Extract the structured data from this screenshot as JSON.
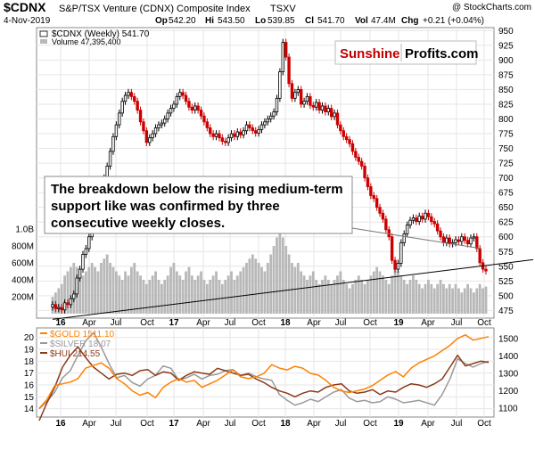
{
  "header": {
    "symbol": "$CDNX",
    "name": "S&P/TSX Venture (CDNX) Composite Index",
    "exchange": "TSXV",
    "copyright": "@ StockCharts.com",
    "date": "4-Nov-2019",
    "open_label": "Op",
    "open": "542.20",
    "high_label": "Hi",
    "high": "543.50",
    "low_label": "Lo",
    "low": "539.85",
    "close_label": "Cl",
    "close": "541.70",
    "vol_label": "Vol",
    "vol": "47.4M",
    "chg_label": "Chg",
    "chg": "+0.21 (+0.04%)"
  },
  "watermark": {
    "part1": "Sunshine",
    "part2": "Profits.com",
    "color1": "#c00000",
    "color2": "#000000"
  },
  "annotation": {
    "line1": "The breakdown below the rising medium-term",
    "line2": "support like was confirmed by three",
    "line3": "consecutive weekly closes."
  },
  "colors": {
    "up": "#000000",
    "down": "#cc0000",
    "volume": "#b8b8b8",
    "gold": "#ff8000",
    "silver": "#999999",
    "hui": "#8b3a1a"
  },
  "chart_data": [
    {
      "type": "candlestick",
      "legend": [
        "$CDNX (Weekly) 541.70",
        "Volume 47,395,400"
      ],
      "x_ticks": [
        "16",
        "Apr",
        "Jul",
        "Oct",
        "17",
        "Apr",
        "Jul",
        "Oct",
        "18",
        "Apr",
        "Jul",
        "Oct",
        "19",
        "Apr",
        "Jul",
        "Oct"
      ],
      "ylim": [
        462,
        955
      ],
      "y_ticks": [
        475,
        500,
        525,
        550,
        575,
        600,
        625,
        650,
        675,
        700,
        725,
        750,
        775,
        800,
        825,
        850,
        875,
        900,
        925,
        950
      ],
      "volume_ticks": [
        "200M",
        "400M",
        "600M",
        "800M",
        "1.0B"
      ],
      "closes": [
        485,
        478,
        480,
        476,
        488,
        485,
        495,
        503,
        530,
        545,
        570,
        580,
        600,
        620,
        640,
        660,
        680,
        700,
        720,
        745,
        770,
        790,
        810,
        830,
        840,
        845,
        838,
        830,
        815,
        795,
        780,
        760,
        768,
        775,
        785,
        790,
        793,
        800,
        810,
        818,
        825,
        838,
        845,
        840,
        830,
        820,
        815,
        822,
        815,
        805,
        795,
        785,
        775,
        770,
        775,
        768,
        762,
        760,
        768,
        775,
        770,
        778,
        773,
        780,
        790,
        785,
        780,
        776,
        782,
        790,
        795,
        800,
        805,
        812,
        835,
        880,
        930,
        905,
        860,
        835,
        845,
        850,
        825,
        830,
        838,
        823,
        820,
        828,
        815,
        822,
        812,
        818,
        804,
        810,
        790,
        780,
        770,
        765,
        758,
        745,
        735,
        728,
        720,
        700,
        685,
        670,
        665,
        650,
        640,
        630,
        612,
        600,
        560,
        545,
        555,
        590,
        605,
        620,
        628,
        632,
        626,
        635,
        630,
        640,
        634,
        626,
        622,
        610,
        600,
        590,
        598,
        588,
        590,
        595,
        592,
        600,
        594,
        588,
        598,
        600,
        580,
        556,
        545,
        542
      ],
      "volume_m": [
        200,
        250,
        300,
        350,
        450,
        500,
        550,
        600,
        550,
        500,
        450,
        500,
        550,
        600,
        550,
        500,
        600,
        650,
        700,
        600,
        550,
        500,
        450,
        400,
        500,
        450,
        550,
        600,
        500,
        450,
        400,
        350,
        400,
        450,
        500,
        400,
        350,
        400,
        450,
        550,
        600,
        500,
        450,
        400,
        500,
        550,
        450,
        400,
        450,
        500,
        400,
        350,
        400,
        450,
        500,
        400,
        350,
        400,
        450,
        500,
        400,
        450,
        500,
        550,
        600,
        650,
        700,
        650,
        600,
        550,
        500,
        600,
        700,
        800,
        900,
        1000,
        900,
        800,
        700,
        600,
        550,
        600,
        500,
        450,
        400,
        450,
        500,
        400,
        350,
        400,
        450,
        400,
        350,
        400,
        450,
        500,
        400,
        350,
        300,
        350,
        400,
        450,
        400,
        350,
        400,
        450,
        500,
        550,
        500,
        450,
        400,
        350,
        450,
        550,
        500,
        450,
        400,
        350,
        400,
        450,
        400,
        350,
        300,
        350,
        400,
        350,
        300,
        350,
        400,
        350,
        300,
        350,
        300,
        350,
        300,
        250,
        300,
        350,
        300,
        250,
        300,
        350,
        300,
        320
      ],
      "trendline": {
        "start": {
          "week": 0,
          "value": 460
        },
        "end": {
          "week": 144,
          "value": 552
        }
      }
    },
    {
      "type": "line",
      "series": [
        {
          "name": "$GOLD 1511.10",
          "axis": "right",
          "values": [
            1100,
            1150,
            1230,
            1240,
            1250,
            1270,
            1330,
            1345,
            1360,
            1330,
            1270,
            1240,
            1200,
            1175,
            1190,
            1160,
            1220,
            1250,
            1270,
            1250,
            1260,
            1220,
            1240,
            1260,
            1290,
            1320,
            1280,
            1270,
            1280,
            1300,
            1350,
            1330,
            1320,
            1340,
            1330,
            1300,
            1290,
            1260,
            1220,
            1200,
            1190,
            1200,
            1210,
            1230,
            1260,
            1290,
            1310,
            1280,
            1330,
            1360,
            1380,
            1400,
            1430,
            1460,
            1500,
            1520,
            1490,
            1500,
            1510
          ]
        },
        {
          "name": "$SILVER 18.07",
          "axis": "left",
          "values": [
            14.0,
            14.6,
            15.4,
            16.6,
            17.2,
            18.5,
            19.7,
            20.4,
            19.2,
            17.8,
            16.6,
            16.8,
            16.2,
            15.9,
            16.5,
            16.8,
            17.6,
            17.4,
            16.4,
            16.6,
            16.9,
            16.5,
            16.8,
            16.9,
            17.2,
            17.3,
            16.8,
            17.0,
            16.7,
            16.5,
            16.4,
            15.2,
            14.7,
            14.3,
            14.5,
            14.8,
            14.6,
            15.0,
            15.4,
            15.6,
            14.9,
            14.6,
            14.7,
            14.5,
            14.6,
            15.0,
            14.8,
            14.5,
            14.6,
            14.7,
            14.5,
            14.3,
            15.2,
            16.5,
            18.2,
            17.8,
            17.5,
            17.8,
            18.0
          ]
        },
        {
          "name": "$HUI 214.55",
          "axis": "left",
          "values": [
            13.0,
            14.5,
            15.8,
            17.5,
            18.5,
            19.2,
            18.3,
            17.5,
            17.0,
            16.5,
            16.9,
            17.0,
            16.8,
            17.2,
            17.3,
            16.8,
            17.1,
            17.0,
            16.4,
            16.8,
            17.1,
            17.0,
            16.9,
            17.4,
            17.2,
            17.0,
            16.8,
            16.9,
            16.5,
            16.2,
            15.8,
            15.5,
            15.3,
            15.0,
            15.3,
            15.5,
            15.4,
            15.8,
            16.0,
            16.1,
            15.5,
            15.3,
            15.4,
            15.6,
            15.2,
            15.5,
            15.4,
            15.8,
            16.1,
            16.0,
            15.8,
            16.1,
            16.5,
            17.5,
            18.5,
            17.6,
            17.8,
            18.0,
            17.9
          ]
        }
      ],
      "x_ticks": [
        "16",
        "Apr",
        "Jul",
        "Oct",
        "17",
        "Apr",
        "Jul",
        "Oct",
        "18",
        "Apr",
        "Jul",
        "Oct",
        "19",
        "Apr",
        "Jul",
        "Oct"
      ],
      "left_ylim": [
        13.3,
        20.8
      ],
      "left_ticks": [
        14,
        15,
        16,
        17,
        18,
        19,
        20
      ],
      "right_ylim": [
        1050,
        1560
      ],
      "right_ticks": [
        1100,
        1200,
        1300,
        1400,
        1500
      ]
    }
  ]
}
